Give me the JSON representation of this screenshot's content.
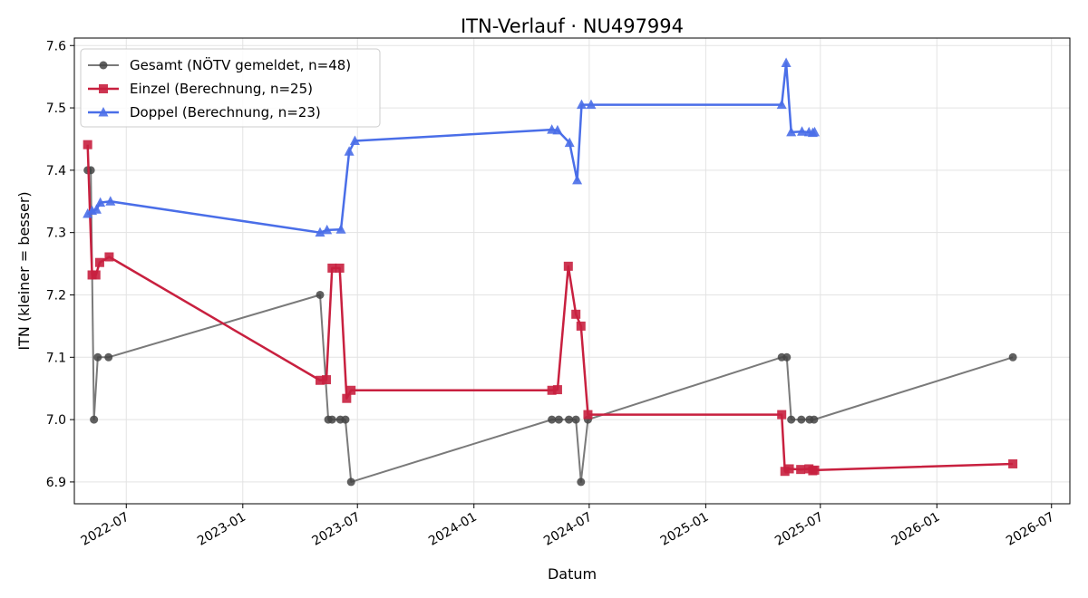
{
  "chart_data": {
    "type": "line",
    "title": "ITN-Verlauf · NU497994",
    "xlabel": "Datum",
    "ylabel": "ITN  (kleiner = besser)",
    "x_type": "date",
    "xlim": [
      "2022-04-10",
      "2026-07-30"
    ],
    "ylim": [
      6.865,
      7.612
    ],
    "x_ticks": [
      {
        "date": "2022-07-01",
        "label": "2022-07"
      },
      {
        "date": "2023-01-01",
        "label": "2023-01"
      },
      {
        "date": "2023-07-01",
        "label": "2023-07"
      },
      {
        "date": "2024-01-01",
        "label": "2024-01"
      },
      {
        "date": "2024-07-01",
        "label": "2024-07"
      },
      {
        "date": "2025-01-01",
        "label": "2025-01"
      },
      {
        "date": "2025-07-01",
        "label": "2025-07"
      },
      {
        "date": "2026-01-01",
        "label": "2026-01"
      },
      {
        "date": "2026-07-01",
        "label": "2026-07"
      }
    ],
    "y_ticks": [
      {
        "value": 6.9,
        "label": "6.9"
      },
      {
        "value": 7.0,
        "label": "7.0"
      },
      {
        "value": 7.1,
        "label": "7.1"
      },
      {
        "value": 7.2,
        "label": "7.2"
      },
      {
        "value": 7.3,
        "label": "7.3"
      },
      {
        "value": 7.4,
        "label": "7.4"
      },
      {
        "value": 7.5,
        "label": "7.5"
      },
      {
        "value": 7.6,
        "label": "7.6"
      }
    ],
    "grid": true,
    "legend_position": "top-left",
    "series": [
      {
        "name": "Gesamt (NÖTV gemeldet, n=48)",
        "color": "#444444",
        "line_color": "#7a7a7a",
        "marker": "circle",
        "points": [
          {
            "x": "2022-05-01",
            "y": 7.4
          },
          {
            "x": "2022-05-06",
            "y": 7.4
          },
          {
            "x": "2022-05-11",
            "y": 7.0
          },
          {
            "x": "2022-05-17",
            "y": 7.1
          },
          {
            "x": "2022-06-03",
            "y": 7.1
          },
          {
            "x": "2023-05-03",
            "y": 7.2
          },
          {
            "x": "2023-05-16",
            "y": 7.0
          },
          {
            "x": "2023-05-22",
            "y": 7.0
          },
          {
            "x": "2023-06-04",
            "y": 7.0
          },
          {
            "x": "2023-06-12",
            "y": 7.0
          },
          {
            "x": "2023-06-21",
            "y": 6.9
          },
          {
            "x": "2024-05-03",
            "y": 7.0
          },
          {
            "x": "2024-05-14",
            "y": 7.0
          },
          {
            "x": "2024-05-30",
            "y": 7.0
          },
          {
            "x": "2024-06-10",
            "y": 7.0
          },
          {
            "x": "2024-06-18",
            "y": 6.9
          },
          {
            "x": "2024-06-29",
            "y": 7.0
          },
          {
            "x": "2025-05-01",
            "y": 7.1
          },
          {
            "x": "2025-05-09",
            "y": 7.1
          },
          {
            "x": "2025-05-16",
            "y": 7.0
          },
          {
            "x": "2025-06-01",
            "y": 7.0
          },
          {
            "x": "2025-06-14",
            "y": 7.0
          },
          {
            "x": "2025-06-21",
            "y": 7.0
          },
          {
            "x": "2026-05-01",
            "y": 7.1
          }
        ]
      },
      {
        "name": "Einzel (Berechnung, n=25)",
        "color": "#c8203f",
        "line_color": "#c8203f",
        "marker": "square",
        "points": [
          {
            "x": "2022-05-01",
            "y": 7.441
          },
          {
            "x": "2022-05-08",
            "y": 7.232
          },
          {
            "x": "2022-05-14",
            "y": 7.232
          },
          {
            "x": "2022-05-20",
            "y": 7.252
          },
          {
            "x": "2022-06-04",
            "y": 7.261
          },
          {
            "x": "2023-05-03",
            "y": 7.063
          },
          {
            "x": "2023-05-13",
            "y": 7.064
          },
          {
            "x": "2023-05-22",
            "y": 7.243
          },
          {
            "x": "2023-06-03",
            "y": 7.243
          },
          {
            "x": "2023-06-14",
            "y": 7.034
          },
          {
            "x": "2023-06-21",
            "y": 7.047
          },
          {
            "x": "2024-05-03",
            "y": 7.047
          },
          {
            "x": "2024-05-12",
            "y": 7.048
          },
          {
            "x": "2024-05-29",
            "y": 7.246
          },
          {
            "x": "2024-06-10",
            "y": 7.169
          },
          {
            "x": "2024-06-18",
            "y": 7.15
          },
          {
            "x": "2024-06-29",
            "y": 7.008
          },
          {
            "x": "2025-05-01",
            "y": 7.008
          },
          {
            "x": "2025-05-06",
            "y": 6.917
          },
          {
            "x": "2025-05-13",
            "y": 6.921
          },
          {
            "x": "2025-05-31",
            "y": 6.92
          },
          {
            "x": "2025-06-13",
            "y": 6.921
          },
          {
            "x": "2025-06-19",
            "y": 6.918
          },
          {
            "x": "2025-06-22",
            "y": 6.919
          },
          {
            "x": "2026-05-01",
            "y": 6.929
          }
        ]
      },
      {
        "name": "Doppel (Berechnung, n=23)",
        "color": "#4a6ee8",
        "line_color": "#4a6ee8",
        "marker": "triangle",
        "points": [
          {
            "x": "2022-05-01",
            "y": 7.33
          },
          {
            "x": "2022-05-08",
            "y": 7.335
          },
          {
            "x": "2022-05-15",
            "y": 7.337
          },
          {
            "x": "2022-05-21",
            "y": 7.348
          },
          {
            "x": "2022-06-06",
            "y": 7.35
          },
          {
            "x": "2023-05-03",
            "y": 7.3
          },
          {
            "x": "2023-05-14",
            "y": 7.304
          },
          {
            "x": "2023-06-05",
            "y": 7.305
          },
          {
            "x": "2023-06-18",
            "y": 7.43
          },
          {
            "x": "2023-06-27",
            "y": 7.447
          },
          {
            "x": "2024-05-03",
            "y": 7.465
          },
          {
            "x": "2024-05-12",
            "y": 7.464
          },
          {
            "x": "2024-05-31",
            "y": 7.444
          },
          {
            "x": "2024-06-12",
            "y": 7.384
          },
          {
            "x": "2024-06-19",
            "y": 7.505
          },
          {
            "x": "2024-07-04",
            "y": 7.505
          },
          {
            "x": "2025-05-01",
            "y": 7.505
          },
          {
            "x": "2025-05-08",
            "y": 7.572
          },
          {
            "x": "2025-05-16",
            "y": 7.461
          },
          {
            "x": "2025-06-02",
            "y": 7.462
          },
          {
            "x": "2025-06-13",
            "y": 7.461
          },
          {
            "x": "2025-06-19",
            "y": 7.46
          },
          {
            "x": "2025-06-22",
            "y": 7.461
          }
        ]
      }
    ]
  }
}
